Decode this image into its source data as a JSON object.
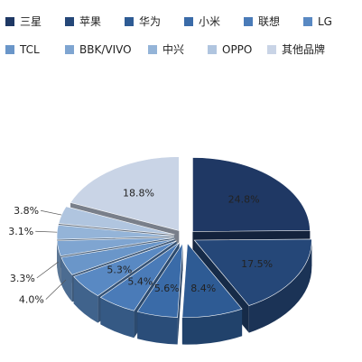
{
  "chart_data": {
    "type": "pie",
    "style": "exploded 3D pie",
    "legend_position": "top",
    "title": "",
    "categories": [
      "三星",
      "苹果",
      "华为",
      "小米",
      "联想",
      "LG",
      "TCL",
      "BBK/VIVO",
      "中兴",
      "OPPO",
      "其他品牌"
    ],
    "values": [
      24.8,
      17.5,
      8.4,
      5.6,
      5.4,
      5.3,
      4.0,
      3.3,
      3.1,
      3.8,
      18.8
    ],
    "labels": [
      "24.8%",
      "17.5%",
      "8.4%",
      "5.6%",
      "5.4%",
      "5.3%",
      "4.0%",
      "3.3%",
      "3.1%",
      "3.8%",
      "18.8%"
    ],
    "colors": [
      "#1f3864",
      "#254778",
      "#2e5b94",
      "#3a6ba8",
      "#4a7bb8",
      "#5989c3",
      "#6a96c9",
      "#7fa5d1",
      "#94b4d8",
      "#b0c5df",
      "#c9d4e6"
    ]
  }
}
